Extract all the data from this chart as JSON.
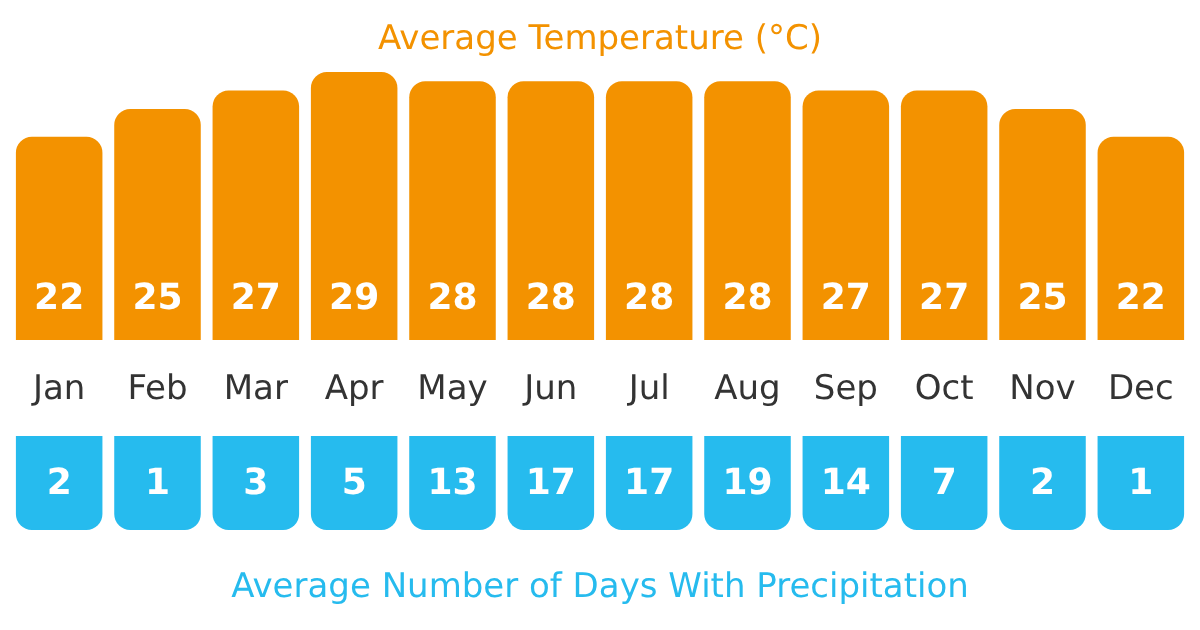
{
  "chart_data": [
    {
      "type": "bar",
      "title": "Average Temperature (°C)",
      "categories": [
        "Jan",
        "Feb",
        "Mar",
        "Apr",
        "May",
        "Jun",
        "Jul",
        "Aug",
        "Sep",
        "Oct",
        "Nov",
        "Dec"
      ],
      "values": [
        22,
        25,
        27,
        29,
        28,
        28,
        28,
        28,
        27,
        27,
        25,
        22
      ],
      "color": "#f39200",
      "data_labels": true,
      "tick_labels": "x"
    },
    {
      "type": "other",
      "title": "Average Number of Days With Precipitation",
      "categories": [
        null,
        null,
        null,
        null,
        null,
        null,
        null,
        null,
        null,
        null,
        null,
        null
      ],
      "values": [
        2,
        1,
        3,
        5,
        13,
        17,
        17,
        19,
        14,
        7,
        2,
        1
      ],
      "color": "#26bbee",
      "data_labels": true
    }
  ]
}
